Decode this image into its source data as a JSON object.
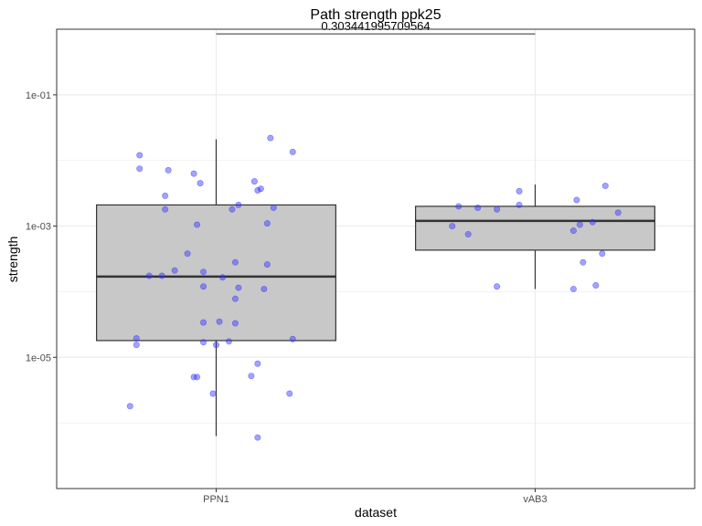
{
  "chart_data": {
    "type": "box",
    "title": "Path strength ppk25",
    "xlabel": "dataset",
    "ylabel": "strength",
    "y_scale": "log10",
    "ylim": [
      1e-07,
      1.0
    ],
    "grid": true,
    "categories": [
      "PPN1",
      "vAB3"
    ],
    "y_ticks": [
      {
        "value": 1e-05,
        "label": "1e-05"
      },
      {
        "value": 0.001,
        "label": "1e-03"
      },
      {
        "value": 0.1,
        "label": "1e-01"
      }
    ],
    "boxes": [
      {
        "category": "PPN1",
        "whisker_low": 6.3e-07,
        "q1": 1.8e-05,
        "median": 0.00017,
        "q3": 0.0021,
        "whisker_high": 0.021
      },
      {
        "category": "vAB3",
        "whisker_low": 0.00011,
        "q1": 0.00043,
        "median": 0.0012,
        "q3": 0.002,
        "whisker_high": 0.0043
      }
    ],
    "points": [
      {
        "category": "PPN1",
        "jitter": -0.24,
        "y": 0.012
      },
      {
        "category": "PPN1",
        "jitter": -0.24,
        "y": 0.0075
      },
      {
        "category": "PPN1",
        "jitter": -0.15,
        "y": 0.0071
      },
      {
        "category": "PPN1",
        "jitter": -0.07,
        "y": 0.0063
      },
      {
        "category": "PPN1",
        "jitter": -0.05,
        "y": 0.0045
      },
      {
        "category": "PPN1",
        "jitter": 0.12,
        "y": 0.0048
      },
      {
        "category": "PPN1",
        "jitter": 0.14,
        "y": 0.0037
      },
      {
        "category": "PPN1",
        "jitter": 0.13,
        "y": 0.0035
      },
      {
        "category": "PPN1",
        "jitter": 0.17,
        "y": 0.022
      },
      {
        "category": "PPN1",
        "jitter": 0.24,
        "y": 0.0135
      },
      {
        "category": "PPN1",
        "jitter": -0.16,
        "y": 0.0029
      },
      {
        "category": "PPN1",
        "jitter": 0.07,
        "y": 0.0021
      },
      {
        "category": "PPN1",
        "jitter": 0.18,
        "y": 0.0019
      },
      {
        "category": "PPN1",
        "jitter": -0.16,
        "y": 0.0018
      },
      {
        "category": "PPN1",
        "jitter": 0.05,
        "y": 0.0018
      },
      {
        "category": "PPN1",
        "jitter": 0.16,
        "y": 0.0011
      },
      {
        "category": "PPN1",
        "jitter": -0.06,
        "y": 0.00105
      },
      {
        "category": "PPN1",
        "jitter": -0.09,
        "y": 0.00038
      },
      {
        "category": "PPN1",
        "jitter": 0.06,
        "y": 0.00028
      },
      {
        "category": "PPN1",
        "jitter": 0.16,
        "y": 0.00026
      },
      {
        "category": "PPN1",
        "jitter": -0.13,
        "y": 0.00021
      },
      {
        "category": "PPN1",
        "jitter": -0.04,
        "y": 0.0002
      },
      {
        "category": "PPN1",
        "jitter": -0.21,
        "y": 0.000175
      },
      {
        "category": "PPN1",
        "jitter": -0.17,
        "y": 0.000175
      },
      {
        "category": "PPN1",
        "jitter": 0.02,
        "y": 0.000165
      },
      {
        "category": "PPN1",
        "jitter": -0.04,
        "y": 0.00012
      },
      {
        "category": "PPN1",
        "jitter": 0.07,
        "y": 0.000115
      },
      {
        "category": "PPN1",
        "jitter": 0.15,
        "y": 0.00011
      },
      {
        "category": "PPN1",
        "jitter": 0.06,
        "y": 7.8e-05
      },
      {
        "category": "PPN1",
        "jitter": -0.04,
        "y": 3.4e-05
      },
      {
        "category": "PPN1",
        "jitter": 0.01,
        "y": 3.5e-05
      },
      {
        "category": "PPN1",
        "jitter": 0.06,
        "y": 3.3e-05
      },
      {
        "category": "PPN1",
        "jitter": -0.25,
        "y": 1.95e-05
      },
      {
        "category": "PPN1",
        "jitter": -0.25,
        "y": 1.55e-05
      },
      {
        "category": "PPN1",
        "jitter": -0.04,
        "y": 1.7e-05
      },
      {
        "category": "PPN1",
        "jitter": 0.04,
        "y": 1.75e-05
      },
      {
        "category": "PPN1",
        "jitter": 0.0,
        "y": 1.55e-05
      },
      {
        "category": "PPN1",
        "jitter": 0.24,
        "y": 1.9e-05
      },
      {
        "category": "PPN1",
        "jitter": 0.13,
        "y": 8e-06
      },
      {
        "category": "PPN1",
        "jitter": -0.07,
        "y": 5e-06
      },
      {
        "category": "PPN1",
        "jitter": -0.06,
        "y": 5e-06
      },
      {
        "category": "PPN1",
        "jitter": 0.11,
        "y": 5.2e-06
      },
      {
        "category": "PPN1",
        "jitter": -0.01,
        "y": 2.8e-06
      },
      {
        "category": "PPN1",
        "jitter": 0.23,
        "y": 2.8e-06
      },
      {
        "category": "PPN1",
        "jitter": -0.27,
        "y": 1.8e-06
      },
      {
        "category": "PPN1",
        "jitter": 0.13,
        "y": 6e-07
      },
      {
        "category": "vAB3",
        "jitter": -0.24,
        "y": 0.002
      },
      {
        "category": "vAB3",
        "jitter": -0.18,
        "y": 0.0019
      },
      {
        "category": "vAB3",
        "jitter": -0.12,
        "y": 0.0018
      },
      {
        "category": "vAB3",
        "jitter": -0.05,
        "y": 0.0021
      },
      {
        "category": "vAB3",
        "jitter": -0.05,
        "y": 0.0034
      },
      {
        "category": "vAB3",
        "jitter": 0.13,
        "y": 0.0025
      },
      {
        "category": "vAB3",
        "jitter": 0.22,
        "y": 0.0041
      },
      {
        "category": "vAB3",
        "jitter": 0.26,
        "y": 0.0016
      },
      {
        "category": "vAB3",
        "jitter": 0.18,
        "y": 0.00115
      },
      {
        "category": "vAB3",
        "jitter": 0.14,
        "y": 0.00105
      },
      {
        "category": "vAB3",
        "jitter": -0.26,
        "y": 0.001
      },
      {
        "category": "vAB3",
        "jitter": 0.12,
        "y": 0.00085
      },
      {
        "category": "vAB3",
        "jitter": -0.21,
        "y": 0.00075
      },
      {
        "category": "vAB3",
        "jitter": 0.21,
        "y": 0.00038
      },
      {
        "category": "vAB3",
        "jitter": 0.15,
        "y": 0.00028
      },
      {
        "category": "vAB3",
        "jitter": -0.12,
        "y": 0.00012
      },
      {
        "category": "vAB3",
        "jitter": 0.12,
        "y": 0.00011
      },
      {
        "category": "vAB3",
        "jitter": 0.19,
        "y": 0.000125
      }
    ],
    "annotation": {
      "text": "0.303441995709564",
      "y": 0.85,
      "from": "PPN1",
      "to": "vAB3"
    },
    "colors": {
      "box_fill": "#c8c8c8",
      "box_stroke": "#333333",
      "points": "#3333ff",
      "grid": "#ebebeb",
      "panel_border": "#333333"
    }
  }
}
